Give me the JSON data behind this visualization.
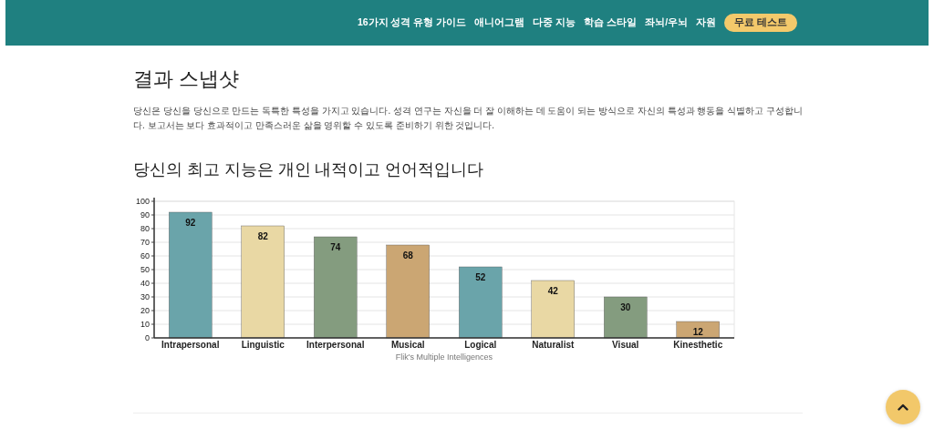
{
  "chart_data": {
    "type": "bar",
    "title": "당신의 최고 지능은 개인 내적이고 언어적입니다",
    "xlabel": "Flik's Multiple Intelligences",
    "categories": [
      "Intrapersonal",
      "Linguistic",
      "Interpersonal",
      "Musical",
      "Logical",
      "Naturalist",
      "Visual",
      "Kinesthetic"
    ],
    "values": [
      92,
      82,
      74,
      68,
      52,
      42,
      30,
      12
    ],
    "colors": [
      "#6aa4aa",
      "#e9d8a4",
      "#849c7f",
      "#cba673",
      "#6aa4aa",
      "#e9d8a4",
      "#849c7f",
      "#cba673"
    ],
    "ylim": [
      0,
      100
    ],
    "yticks": [
      0,
      10,
      20,
      30,
      40,
      50,
      60,
      70,
      80,
      90,
      100
    ],
    "grid": "y",
    "data_labels": true,
    "legend": false,
    "annotations": [
      "16가지 성격 유형 가이드",
      "애니어그램",
      "다중 지능",
      "학습 스타일",
      "좌뇌/우뇌",
      "자원",
      "무료 테스트",
      "결과 스냅샷",
      "당신은 당신을 당신으로 만드는 독특한 특성을 가지고 있습니다. 성격 연구는 자신을 더 잘 이해하는 데 도움이 되는 방식으로 자신의 특성과 행동을 식별하고 구성합니다. 보고서는 보다 효과적이고 만족스러운 삶을 영위할 수 있도록 준비하기 위한 것입니다."
    ]
  }
}
